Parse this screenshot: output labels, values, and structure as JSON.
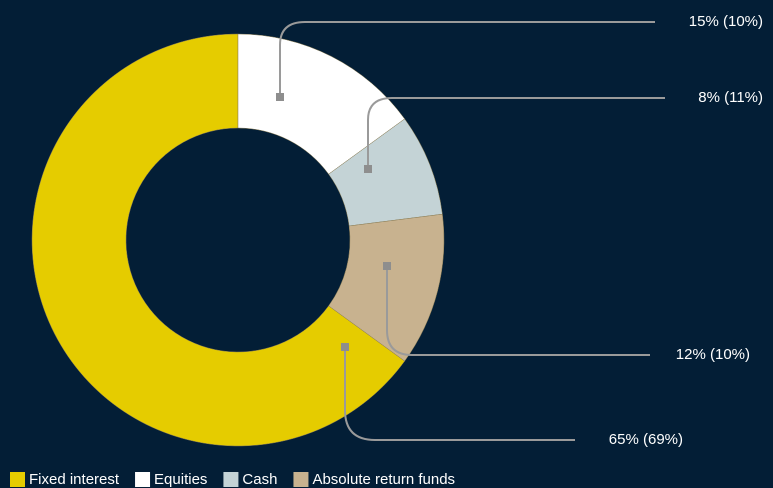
{
  "chart_data": {
    "type": "donut",
    "categories": [
      "Fixed interest",
      "Equities",
      "Cash",
      "Absolute return funds"
    ],
    "values": [
      65,
      15,
      8,
      12
    ],
    "value_labels": [
      "65% (69%)",
      "15% (10%)",
      "8% (11%)",
      "12% (10%)"
    ],
    "colors": [
      "#e5cc00",
      "#ffffff",
      "#c4d3d6",
      "#c8b28f"
    ]
  }
}
